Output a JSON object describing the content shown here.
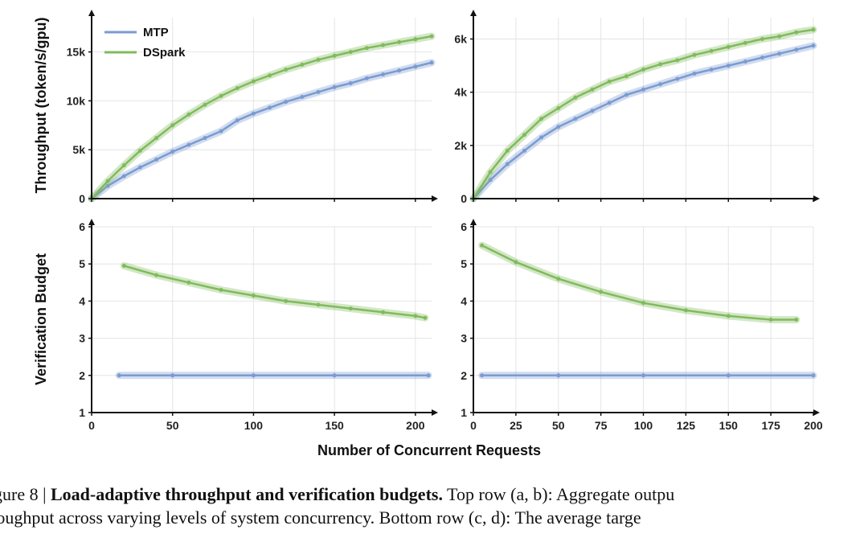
{
  "colors": {
    "mtp": "#7b9bd1",
    "dspark": "#80bb5c",
    "axis": "#111111",
    "grid": "#e4e4e4"
  },
  "figure": {
    "shared_xlabel": "Number of Concurrent Requests",
    "ylabel_top": "Throughput (token/s/gpu)",
    "ylabel_bottom": "Verification Budget"
  },
  "legend": {
    "items": [
      "MTP",
      "DSpark"
    ]
  },
  "caption": {
    "line1_prefix": "gure 8 | ",
    "line1_bold": "Load-adaptive throughput and verification budgets.",
    "line1_rest": " Top row (a, b): Aggregate outpu",
    "line2": "roughput across varying levels of system concurrency. Bottom row (c, d): The average targe"
  },
  "chart_data": [
    {
      "panel": "a",
      "type": "scatter",
      "xlabel": "",
      "ylabel": "Throughput (token/s/gpu)",
      "xlim": [
        0,
        210
      ],
      "ylim": [
        0,
        18500
      ],
      "xticks": [
        0,
        50,
        100,
        150,
        200
      ],
      "xtick_labels": [
        "0",
        "50",
        "100",
        "150",
        "200"
      ],
      "yticks": [
        0,
        5000,
        10000,
        15000
      ],
      "ytick_labels": [
        "0",
        "5k",
        "10k",
        "15k"
      ],
      "grid": true,
      "legend_position": "top-left",
      "series": [
        {
          "name": "MTP",
          "x": [
            0,
            10,
            20,
            30,
            40,
            50,
            60,
            70,
            80,
            90,
            100,
            110,
            120,
            130,
            140,
            150,
            160,
            170,
            180,
            190,
            200,
            210
          ],
          "y": [
            0,
            1300,
            2300,
            3200,
            4000,
            4800,
            5500,
            6200,
            6900,
            8000,
            8700,
            9300,
            9900,
            10400,
            10900,
            11400,
            11800,
            12300,
            12700,
            13100,
            13500,
            13900
          ]
        },
        {
          "name": "DSpark",
          "x": [
            0,
            10,
            20,
            30,
            40,
            50,
            60,
            70,
            80,
            90,
            100,
            110,
            120,
            130,
            140,
            150,
            160,
            170,
            180,
            190,
            200,
            210
          ],
          "y": [
            0,
            1800,
            3400,
            4900,
            6200,
            7500,
            8600,
            9600,
            10500,
            11300,
            12000,
            12600,
            13200,
            13700,
            14200,
            14600,
            15000,
            15400,
            15700,
            16000,
            16300,
            16600
          ]
        }
      ]
    },
    {
      "panel": "b",
      "type": "scatter",
      "xlabel": "",
      "ylabel": "",
      "xlim": [
        0,
        200
      ],
      "ylim": [
        0,
        6800
      ],
      "xticks": [
        0,
        25,
        50,
        75,
        100,
        125,
        150,
        175,
        200
      ],
      "xtick_labels": [
        "0",
        "25",
        "50",
        "75",
        "100",
        "125",
        "150",
        "175",
        "200"
      ],
      "yticks": [
        0,
        2000,
        4000,
        6000
      ],
      "ytick_labels": [
        "0",
        "2k",
        "4k",
        "6k"
      ],
      "grid": true,
      "series": [
        {
          "name": "MTP",
          "x": [
            0,
            10,
            20,
            30,
            40,
            50,
            60,
            70,
            80,
            90,
            100,
            110,
            120,
            130,
            140,
            150,
            160,
            170,
            180,
            190,
            200
          ],
          "y": [
            0,
            700,
            1300,
            1800,
            2300,
            2700,
            3000,
            3300,
            3600,
            3900,
            4100,
            4300,
            4500,
            4700,
            4850,
            5000,
            5150,
            5300,
            5450,
            5600,
            5750
          ]
        },
        {
          "name": "DSpark",
          "x": [
            0,
            10,
            20,
            30,
            40,
            50,
            60,
            70,
            80,
            90,
            100,
            110,
            120,
            130,
            140,
            150,
            160,
            170,
            180,
            190,
            200
          ],
          "y": [
            0,
            1000,
            1800,
            2400,
            3000,
            3400,
            3800,
            4100,
            4400,
            4600,
            4850,
            5050,
            5200,
            5400,
            5550,
            5700,
            5850,
            6000,
            6100,
            6250,
            6350
          ]
        }
      ]
    },
    {
      "panel": "c",
      "type": "scatter",
      "xlabel": "Number of Concurrent Requests",
      "ylabel": "Verification Budget",
      "xlim": [
        0,
        210
      ],
      "ylim": [
        1,
        6
      ],
      "xticks": [
        0,
        50,
        100,
        150,
        200
      ],
      "xtick_labels": [
        "0",
        "50",
        "100",
        "150",
        "200"
      ],
      "yticks": [
        1,
        2,
        3,
        4,
        5,
        6
      ],
      "ytick_labels": [
        "1",
        "2",
        "3",
        "4",
        "5",
        "6"
      ],
      "grid": true,
      "series": [
        {
          "name": "MTP",
          "x": [
            17,
            50,
            100,
            150,
            208
          ],
          "y": [
            2,
            2,
            2,
            2,
            2
          ]
        },
        {
          "name": "DSpark",
          "x": [
            20,
            40,
            60,
            80,
            100,
            120,
            140,
            160,
            180,
            200,
            206
          ],
          "y": [
            4.95,
            4.7,
            4.5,
            4.3,
            4.15,
            4.0,
            3.9,
            3.8,
            3.7,
            3.6,
            3.55
          ]
        }
      ]
    },
    {
      "panel": "d",
      "type": "scatter",
      "xlabel": "Number of Concurrent Requests",
      "ylabel": "",
      "xlim": [
        0,
        200
      ],
      "ylim": [
        1,
        6
      ],
      "xticks": [
        0,
        25,
        50,
        75,
        100,
        125,
        150,
        175,
        200
      ],
      "xtick_labels": [
        "0",
        "25",
        "50",
        "75",
        "100",
        "125",
        "150",
        "175",
        "200"
      ],
      "yticks": [
        1,
        2,
        3,
        4,
        5,
        6
      ],
      "ytick_labels": [
        "1",
        "2",
        "3",
        "4",
        "5",
        "6"
      ],
      "grid": true,
      "series": [
        {
          "name": "MTP",
          "x": [
            5,
            50,
            100,
            150,
            200
          ],
          "y": [
            2,
            2,
            2,
            2,
            2
          ]
        },
        {
          "name": "DSpark",
          "x": [
            5,
            25,
            50,
            75,
            100,
            125,
            150,
            175,
            190
          ],
          "y": [
            5.5,
            5.05,
            4.6,
            4.25,
            3.95,
            3.75,
            3.6,
            3.5,
            3.5
          ]
        }
      ]
    }
  ]
}
